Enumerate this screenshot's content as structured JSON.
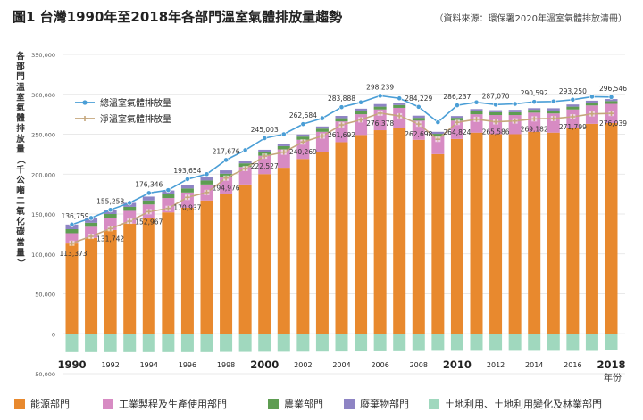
{
  "title": "圖1  台灣1990年至2018年各部門溫室氣體排放量趨勢",
  "source_note": "（資料來源：環保署2020年溫室氣體排放清冊）",
  "colors": {
    "energy": "#E8892E",
    "industrial": "#D78BC3",
    "agriculture": "#5E9D52",
    "waste": "#8E84C4",
    "lulucf": "#A0D8BE",
    "total_line": "#4A9ED6",
    "net_line": "#C5A67C"
  },
  "chart_data": {
    "type": "bar",
    "stacked": true,
    "title": "圖1  台灣1990年至2018年各部門溫室氣體排放量趨勢",
    "ylabel": "各部門溫室氣體排放量（千公噸二氧化碳當量）",
    "xlabel": "年份",
    "ylim": [
      -50000,
      350000
    ],
    "yticks": [
      "350,000",
      "300,000",
      "250,000",
      "200,000",
      "150,000",
      "100,000",
      "50,000",
      "0",
      "-50,000"
    ],
    "ytick_values": [
      350000,
      300000,
      250000,
      200000,
      150000,
      100000,
      50000,
      0,
      -50000
    ],
    "x": [
      1990,
      1991,
      1992,
      1993,
      1994,
      1995,
      1996,
      1997,
      1998,
      1999,
      2000,
      2001,
      2002,
      2003,
      2004,
      2005,
      2006,
      2007,
      2008,
      2009,
      2010,
      2011,
      2012,
      2013,
      2014,
      2015,
      2016,
      2017,
      2018
    ],
    "xtick_labels": [
      "1990",
      "1992",
      "1994",
      "1996",
      "1998",
      "2000",
      "2002",
      "2004",
      "2006",
      "2008",
      "2010",
      "2012",
      "2014",
      "2016",
      "2018"
    ],
    "grid": true,
    "legend_position": "bottom",
    "series": [
      {
        "name": "能源部門",
        "values": [
          113000,
          120000,
          130000,
          138000,
          145000,
          152000,
          158000,
          167000,
          175000,
          187000,
          200000,
          208000,
          219000,
          228000,
          240000,
          249000,
          255000,
          258000,
          243000,
          225000,
          244000,
          252000,
          250000,
          250000,
          253000,
          252000,
          258000,
          263000,
          264000
        ]
      },
      {
        "name": "工業製程及生產使用部門",
        "values": [
          13000,
          14000,
          15000,
          16000,
          17000,
          18000,
          19000,
          20000,
          21000,
          22000,
          23000,
          23000,
          24000,
          25000,
          26000,
          26000,
          26000,
          25000,
          24000,
          22000,
          23000,
          23000,
          24000,
          24000,
          24000,
          24000,
          23000,
          23000,
          24000
        ]
      },
      {
        "name": "農業部門",
        "values": [
          5000,
          5000,
          5000,
          5000,
          5000,
          5000,
          5000,
          5000,
          4500,
          4500,
          4500,
          4000,
          4000,
          4000,
          4000,
          4000,
          3500,
          3500,
          3500,
          3500,
          3500,
          3500,
          3500,
          3500,
          3500,
          3500,
          3500,
          3500,
          3500
        ]
      },
      {
        "name": "廢棄物部門",
        "values": [
          5759,
          5700,
          5258,
          5000,
          4846,
          4500,
          4654,
          4000,
          4176,
          3500,
          3003,
          2800,
          2684,
          2700,
          2888,
          3000,
          3239,
          3000,
          2729,
          2500,
          2237,
          3000,
          2570,
          3000,
          2092,
          3000,
          2750,
          2500,
          2546
        ]
      },
      {
        "name": "土地利用、土地利用變化及林業部門",
        "values": [
          -23000,
          -23000,
          -23000,
          -23000,
          -23000,
          -23000,
          -23000,
          -23000,
          -22700,
          -22700,
          -22500,
          -22500,
          -22400,
          -22300,
          -22200,
          -22100,
          -22000,
          -21900,
          -21600,
          -21400,
          -21400,
          -21400,
          -21400,
          -21400,
          -21400,
          -21400,
          -21450,
          -21500,
          -20500
        ]
      }
    ],
    "lines": [
      {
        "name": "總溫室氣體排放量",
        "values": [
          136759,
          145000,
          155258,
          164000,
          176346,
          180000,
          193654,
          200000,
          217676,
          230000,
          245003,
          250000,
          262684,
          270000,
          283888,
          290000,
          298239,
          295000,
          284229,
          265000,
          286237,
          290000,
          287070,
          288000,
          290592,
          291000,
          293250,
          297000,
          296546
        ]
      },
      {
        "name": "淨溫室氣體排放量",
        "values": [
          113373,
          122000,
          131742,
          141000,
          152967,
          157000,
          170937,
          177000,
          194976,
          207000,
          222527,
          227500,
          240269,
          247700,
          261692,
          268000,
          276378,
          273000,
          262698,
          243600,
          264824,
          268600,
          265586,
          266600,
          269182,
          269600,
          271799,
          275500,
          276039
        ]
      }
    ],
    "data_labels": {
      "total": [
        {
          "year": 1990,
          "text": "136,759"
        },
        {
          "year": 1992,
          "text": "155,258"
        },
        {
          "year": 1994,
          "text": "176,346"
        },
        {
          "year": 1996,
          "text": "193,654"
        },
        {
          "year": 1998,
          "text": "217,676"
        },
        {
          "year": 2000,
          "text": "245,003"
        },
        {
          "year": 2002,
          "text": "262,684"
        },
        {
          "year": 2004,
          "text": "283,888"
        },
        {
          "year": 2006,
          "text": "298,239"
        },
        {
          "year": 2008,
          "text": "284,229"
        },
        {
          "year": 2010,
          "text": "286,237"
        },
        {
          "year": 2012,
          "text": "287,070"
        },
        {
          "year": 2014,
          "text": "290,592"
        },
        {
          "year": 2016,
          "text": "293,250"
        },
        {
          "year": 2018,
          "text": "296,546"
        }
      ],
      "net": [
        {
          "year": 1990,
          "text": "113,373"
        },
        {
          "year": 1992,
          "text": "131,742"
        },
        {
          "year": 1994,
          "text": "152,967"
        },
        {
          "year": 1996,
          "text": "170,937"
        },
        {
          "year": 1998,
          "text": "194,976"
        },
        {
          "year": 2000,
          "text": "222,527"
        },
        {
          "year": 2002,
          "text": "240,269"
        },
        {
          "year": 2004,
          "text": "261,692"
        },
        {
          "year": 2006,
          "text": "276,378"
        },
        {
          "year": 2008,
          "text": "262,698"
        },
        {
          "year": 2010,
          "text": "264,824"
        },
        {
          "year": 2012,
          "text": "265,586"
        },
        {
          "year": 2014,
          "text": "269,182"
        },
        {
          "year": 2016,
          "text": "271,799"
        },
        {
          "year": 2018,
          "text": "276,039"
        }
      ]
    }
  }
}
